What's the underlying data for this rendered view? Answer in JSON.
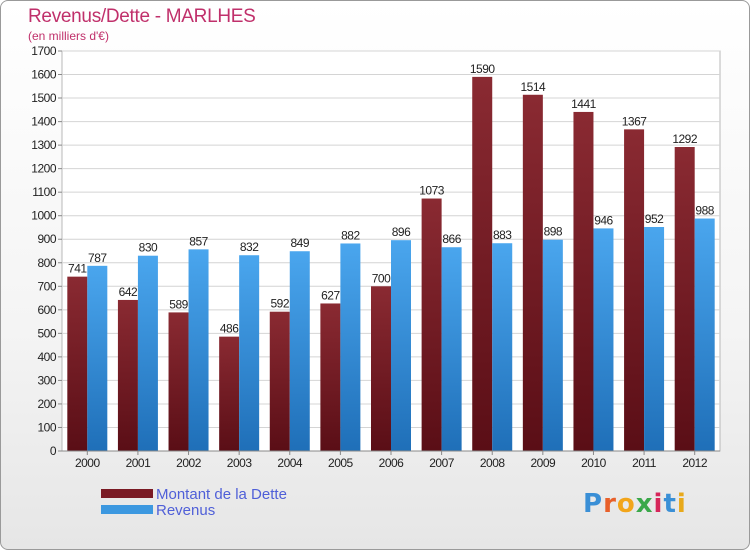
{
  "chart_data": {
    "type": "bar",
    "title": "Revenus/Dette - MARLHES",
    "subtitle": "(en milliers d'€)",
    "categories": [
      "2000",
      "2001",
      "2002",
      "2003",
      "2004",
      "2005",
      "2006",
      "2007",
      "2008",
      "2009",
      "2010",
      "2011",
      "2012"
    ],
    "series": [
      {
        "name": "Montant de la Dette",
        "values": [
          741,
          642,
          589,
          486,
          592,
          627,
          700,
          1073,
          1590,
          1514,
          1441,
          1367,
          1292
        ],
        "color": "#7a1a24"
      },
      {
        "name": "Revenus",
        "values": [
          787,
          830,
          857,
          832,
          849,
          882,
          896,
          866,
          883,
          898,
          946,
          952,
          988
        ],
        "color": "#3c98e0"
      }
    ],
    "ylim": [
      0,
      1700
    ],
    "ytick_step": 100,
    "grid": true,
    "legend_position": "bottom-left"
  },
  "logo": {
    "text": "Proxiti",
    "letter_colors": [
      "#3a8fd6",
      "#e8602a",
      "#f2a51a",
      "#3aa84a",
      "#d6265a",
      "#3a8fd6",
      "#e8a91a"
    ]
  }
}
